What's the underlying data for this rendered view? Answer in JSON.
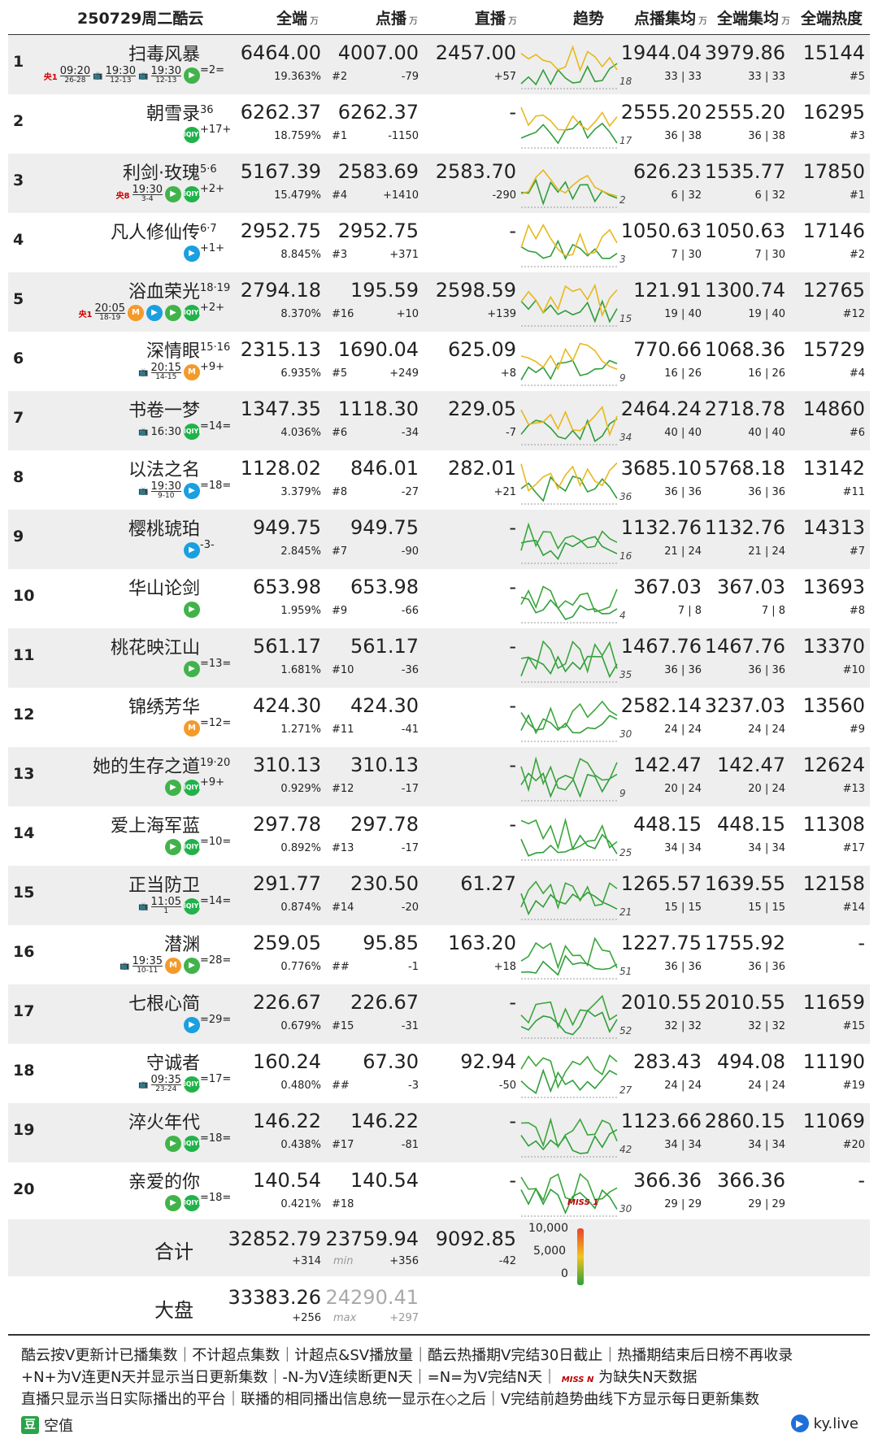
{
  "header": {
    "title": "250729周二酷云",
    "col_all": "全端",
    "col_vod": "点播",
    "col_live": "直播",
    "col_trend": "趋势",
    "col_vod_avg": "点播集均",
    "col_all_avg": "全端集均",
    "col_heat": "全端热度",
    "unit": "万"
  },
  "rows": [
    {
      "rank": "1",
      "name": "扫毒风暴",
      "ep": "",
      "chg": "=2=",
      "icons": [
        "tv:央1",
        "time:09:20|26-28",
        "tv2:",
        "time:19:30|12-13",
        "tv3:",
        "time:19:30|12-13",
        "tx"
      ],
      "all": "6464.00",
      "all_pct": "19.363%",
      "vod": "4007.00",
      "vod_rank": "#2",
      "vod_chg": "-79",
      "live": "2457.00",
      "live_chg": "+57",
      "tnum": "18",
      "vod_avg": "1944.04",
      "vod_avg_eps": "33 | 33",
      "all_avg": "3979.86",
      "all_avg_eps": "33 | 33",
      "heat": "15144",
      "heat_rank": "#5"
    },
    {
      "rank": "2",
      "name": "朝雪录",
      "ep": "36",
      "chg": "+17+",
      "icons": [
        "iq"
      ],
      "all": "6262.37",
      "all_pct": "18.759%",
      "vod": "6262.37",
      "vod_rank": "#1",
      "vod_chg": "-1150",
      "live": "-",
      "live_chg": "",
      "tnum": "17",
      "vod_avg": "2555.20",
      "vod_avg_eps": "36 | 38",
      "all_avg": "2555.20",
      "all_avg_eps": "36 | 38",
      "heat": "16295",
      "heat_rank": "#3"
    },
    {
      "rank": "3",
      "name": "利剑·玫瑰",
      "ep": "5·6",
      "chg": "+2+",
      "icons": [
        "tv:央8",
        "time:19:30|3-4",
        "tx",
        "iq"
      ],
      "all": "5167.39",
      "all_pct": "15.479%",
      "vod": "2583.69",
      "vod_rank": "#4",
      "vod_chg": "+1410",
      "live": "2583.70",
      "live_chg": "-290",
      "tnum": "2",
      "vod_avg": "626.23",
      "vod_avg_eps": "6 | 32",
      "all_avg": "1535.77",
      "all_avg_eps": "6 | 32",
      "heat": "17850",
      "heat_rank": "#1"
    },
    {
      "rank": "4",
      "name": "凡人修仙传",
      "ep": "6·7",
      "chg": "+1+",
      "icons": [
        "yk"
      ],
      "all": "2952.75",
      "all_pct": "8.845%",
      "vod": "2952.75",
      "vod_rank": "#3",
      "vod_chg": "+371",
      "live": "-",
      "live_chg": "",
      "tnum": "3",
      "vod_avg": "1050.63",
      "vod_avg_eps": "7 | 30",
      "all_avg": "1050.63",
      "all_avg_eps": "7 | 30",
      "heat": "17146",
      "heat_rank": "#2"
    },
    {
      "rank": "5",
      "name": "浴血荣光",
      "ep": "18·19",
      "chg": "+2+",
      "icons": [
        "tv:央1",
        "time:20:05|18-19",
        "mg",
        "yk",
        "tx",
        "iq"
      ],
      "all": "2794.18",
      "all_pct": "8.370%",
      "vod": "195.59",
      "vod_rank": "#16",
      "vod_chg": "+10",
      "live": "2598.59",
      "live_chg": "+139",
      "tnum": "15",
      "vod_avg": "121.91",
      "vod_avg_eps": "19 | 40",
      "all_avg": "1300.74",
      "all_avg_eps": "19 | 40",
      "heat": "12765",
      "heat_rank": "#12"
    },
    {
      "rank": "6",
      "name": "深情眼",
      "ep": "15·16",
      "chg": "+9+",
      "icons": [
        "tv:",
        "time:20:15|14-15",
        "mg"
      ],
      "all": "2315.13",
      "all_pct": "6.935%",
      "vod": "1690.04",
      "vod_rank": "#5",
      "vod_chg": "+249",
      "live": "625.09",
      "live_chg": "+8",
      "tnum": "9",
      "vod_avg": "770.66",
      "vod_avg_eps": "16 | 26",
      "all_avg": "1068.36",
      "all_avg_eps": "16 | 26",
      "heat": "15729",
      "heat_rank": "#4"
    },
    {
      "rank": "7",
      "name": "书卷一梦",
      "ep": "",
      "chg": "=14=",
      "icons": [
        "tv:",
        "time:16:30|",
        "iq"
      ],
      "all": "1347.35",
      "all_pct": "4.036%",
      "vod": "1118.30",
      "vod_rank": "#6",
      "vod_chg": "-34",
      "live": "229.05",
      "live_chg": "-7",
      "tnum": "34",
      "vod_avg": "2464.24",
      "vod_avg_eps": "40 | 40",
      "all_avg": "2718.78",
      "all_avg_eps": "40 | 40",
      "heat": "14860",
      "heat_rank": "#6"
    },
    {
      "rank": "8",
      "name": "以法之名",
      "ep": "",
      "chg": "=18=",
      "icons": [
        "tv:",
        "time:19:30|9-10",
        "yk"
      ],
      "all": "1128.02",
      "all_pct": "3.379%",
      "vod": "846.01",
      "vod_rank": "#8",
      "vod_chg": "-27",
      "live": "282.01",
      "live_chg": "+21",
      "tnum": "36",
      "vod_avg": "3685.10",
      "vod_avg_eps": "36 | 36",
      "all_avg": "5768.18",
      "all_avg_eps": "36 | 36",
      "heat": "13142",
      "heat_rank": "#11"
    },
    {
      "rank": "9",
      "name": "樱桃琥珀",
      "ep": "",
      "chg": "-3-",
      "icons": [
        "yk"
      ],
      "all": "949.75",
      "all_pct": "2.845%",
      "vod": "949.75",
      "vod_rank": "#7",
      "vod_chg": "-90",
      "live": "-",
      "live_chg": "",
      "tnum": "16",
      "vod_avg": "1132.76",
      "vod_avg_eps": "21 | 24",
      "all_avg": "1132.76",
      "all_avg_eps": "21 | 24",
      "heat": "14313",
      "heat_rank": "#7"
    },
    {
      "rank": "10",
      "name": "华山论剑",
      "ep": "",
      "chg": "",
      "icons": [
        "tx"
      ],
      "all": "653.98",
      "all_pct": "1.959%",
      "vod": "653.98",
      "vod_rank": "#9",
      "vod_chg": "-66",
      "live": "-",
      "live_chg": "",
      "tnum": "4",
      "vod_avg": "367.03",
      "vod_avg_eps": "7 | 8",
      "all_avg": "367.03",
      "all_avg_eps": "7 | 8",
      "heat": "13693",
      "heat_rank": "#8"
    },
    {
      "rank": "11",
      "name": "桃花映江山",
      "ep": "",
      "chg": "=13=",
      "icons": [
        "tx"
      ],
      "all": "561.17",
      "all_pct": "1.681%",
      "vod": "561.17",
      "vod_rank": "#10",
      "vod_chg": "-36",
      "live": "-",
      "live_chg": "",
      "tnum": "35",
      "vod_avg": "1467.76",
      "vod_avg_eps": "36 | 36",
      "all_avg": "1467.76",
      "all_avg_eps": "36 | 36",
      "heat": "13370",
      "heat_rank": "#10"
    },
    {
      "rank": "12",
      "name": "锦绣芳华",
      "ep": "",
      "chg": "=12=",
      "icons": [
        "mg"
      ],
      "all": "424.30",
      "all_pct": "1.271%",
      "vod": "424.30",
      "vod_rank": "#11",
      "vod_chg": "-41",
      "live": "-",
      "live_chg": "",
      "tnum": "30",
      "vod_avg": "2582.14",
      "vod_avg_eps": "24 | 24",
      "all_avg": "3237.03",
      "all_avg_eps": "24 | 24",
      "heat": "13560",
      "heat_rank": "#9"
    },
    {
      "rank": "13",
      "name": "她的生存之道",
      "ep": "19·20",
      "chg": "+9+",
      "icons": [
        "tx",
        "iq"
      ],
      "all": "310.13",
      "all_pct": "0.929%",
      "vod": "310.13",
      "vod_rank": "#12",
      "vod_chg": "-17",
      "live": "-",
      "live_chg": "",
      "tnum": "9",
      "vod_avg": "142.47",
      "vod_avg_eps": "20 | 24",
      "all_avg": "142.47",
      "all_avg_eps": "20 | 24",
      "heat": "12624",
      "heat_rank": "#13"
    },
    {
      "rank": "14",
      "name": "爱上海军蓝",
      "ep": "",
      "chg": "=10=",
      "icons": [
        "tx",
        "iq"
      ],
      "all": "297.78",
      "all_pct": "0.892%",
      "vod": "297.78",
      "vod_rank": "#13",
      "vod_chg": "-17",
      "live": "-",
      "live_chg": "",
      "tnum": "25",
      "vod_avg": "448.15",
      "vod_avg_eps": "34 | 34",
      "all_avg": "448.15",
      "all_avg_eps": "34 | 34",
      "heat": "11308",
      "heat_rank": "#17"
    },
    {
      "rank": "15",
      "name": "正当防卫",
      "ep": "",
      "chg": "=14=",
      "icons": [
        "tv:",
        "time:11:05|1",
        "iq"
      ],
      "all": "291.77",
      "all_pct": "0.874%",
      "vod": "230.50",
      "vod_rank": "#14",
      "vod_chg": "-20",
      "live": "61.27",
      "live_chg": "",
      "tnum": "21",
      "vod_avg": "1265.57",
      "vod_avg_eps": "15 | 15",
      "all_avg": "1639.55",
      "all_avg_eps": "15 | 15",
      "heat": "12158",
      "heat_rank": "#14"
    },
    {
      "rank": "16",
      "name": "潜渊",
      "ep": "",
      "chg": "=28=",
      "icons": [
        "tv:",
        "time:19:35|10-11",
        "mg",
        "tx"
      ],
      "all": "259.05",
      "all_pct": "0.776%",
      "vod": "95.85",
      "vod_rank": "##",
      "vod_chg": "-1",
      "live": "163.20",
      "live_chg": "+18",
      "tnum": "51",
      "vod_avg": "1227.75",
      "vod_avg_eps": "36 | 36",
      "all_avg": "1755.92",
      "all_avg_eps": "36 | 36",
      "heat": "-",
      "heat_rank": ""
    },
    {
      "rank": "17",
      "name": "七根心简",
      "ep": "",
      "chg": "=29=",
      "icons": [
        "yk"
      ],
      "all": "226.67",
      "all_pct": "0.679%",
      "vod": "226.67",
      "vod_rank": "#15",
      "vod_chg": "-31",
      "live": "-",
      "live_chg": "",
      "tnum": "52",
      "vod_avg": "2010.55",
      "vod_avg_eps": "32 | 32",
      "all_avg": "2010.55",
      "all_avg_eps": "32 | 32",
      "heat": "11659",
      "heat_rank": "#15"
    },
    {
      "rank": "18",
      "name": "守诚者",
      "ep": "",
      "chg": "=17=",
      "icons": [
        "tv:",
        "time:09:35|23-24",
        "iq"
      ],
      "all": "160.24",
      "all_pct": "0.480%",
      "vod": "67.30",
      "vod_rank": "##",
      "vod_chg": "-3",
      "live": "92.94",
      "live_chg": "-50",
      "tnum": "27",
      "vod_avg": "283.43",
      "vod_avg_eps": "24 | 24",
      "all_avg": "494.08",
      "all_avg_eps": "24 | 24",
      "heat": "11190",
      "heat_rank": "#19"
    },
    {
      "rank": "19",
      "name": "淬火年代",
      "ep": "",
      "chg": "=18=",
      "icons": [
        "tx",
        "iq"
      ],
      "all": "146.22",
      "all_pct": "0.438%",
      "vod": "146.22",
      "vod_rank": "#17",
      "vod_chg": "-81",
      "live": "-",
      "live_chg": "",
      "tnum": "42",
      "vod_avg": "1123.66",
      "vod_avg_eps": "34 | 34",
      "all_avg": "2860.15",
      "all_avg_eps": "34 | 34",
      "heat": "11069",
      "heat_rank": "#20"
    },
    {
      "rank": "20",
      "name": "亲爱的你",
      "ep": "",
      "chg": "=18=",
      "icons": [
        "tx",
        "iq"
      ],
      "all": "140.54",
      "all_pct": "0.421%",
      "vod": "140.54",
      "vod_rank": "#18",
      "vod_chg": "",
      "live": "-",
      "live_chg": "",
      "tnum": "30",
      "vod_avg": "366.36",
      "vod_avg_eps": "29 | 29",
      "all_avg": "366.36",
      "all_avg_eps": "29 | 29",
      "heat": "-",
      "heat_rank": "",
      "miss": "MISS 1"
    }
  ],
  "total": {
    "label": "合计",
    "all": "32852.79",
    "all_chg": "+314",
    "vod": "23759.94",
    "vod_note": "min",
    "vod_chg": "+356",
    "live": "9092.85",
    "live_chg": "-42"
  },
  "market": {
    "label": "大盘",
    "all": "33383.26",
    "all_chg": "+256",
    "vod": "24290.41",
    "vod_note": "max",
    "vod_chg": "+297"
  },
  "legend": {
    "t1": "10,000",
    "t2": "5,000",
    "t3": "0"
  },
  "footer": {
    "line1": "酷云按V更新计已播集数｜不计超点集数｜计超点&SV播放量｜酷云热播期V完结30日截止｜热播期结束后日榜不再收录",
    "line2": "+N+为V连更N天并显示当日更新集数｜-N-为V连续断更N天｜=N=为V完结N天｜",
    "line2b": "为缺失N天数据",
    "miss_n": "MISS N",
    "line3": "直播只显示当日实际播出的平台｜联播的相同播出信息统一显示在◇之后｜V完结前趋势曲线下方显示每日更新集数",
    "null_label": "空值",
    "null_icon": "豆",
    "brand": "ky.live"
  },
  "platform_icons": {
    "yk": "▶",
    "tx": "▶",
    "iq": "iQIYI",
    "mg": "M"
  }
}
